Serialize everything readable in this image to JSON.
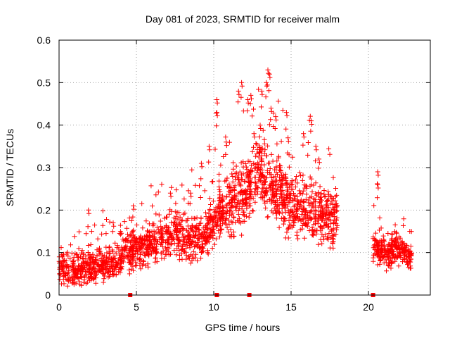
{
  "chart_data": {
    "type": "scatter",
    "title": "Day 081 of 2023, SRMTID for receiver malm",
    "xlabel": "GPS time / hours",
    "ylabel": "SRMTID / TECUs",
    "xlim": [
      0,
      24
    ],
    "ylim": [
      0,
      0.6
    ],
    "xticks": [
      0,
      5,
      10,
      15,
      20
    ],
    "xtick_labels": [
      "0",
      "5",
      "10",
      "15",
      "20"
    ],
    "yticks": [
      0,
      0.1,
      0.2,
      0.3,
      0.4,
      0.5,
      0.6
    ],
    "ytick_labels": [
      "0",
      "0.1",
      "0.2",
      "0.3",
      "0.4",
      "0.5",
      "0.6"
    ],
    "grid": true,
    "marker_color": "#ff0000",
    "series": [
      {
        "name": "SRMTID",
        "marker": "plus",
        "color": "#ff0000",
        "segments": [
          {
            "x_start": 0.0,
            "x_end": 4.5,
            "profile": [
              [
                0.0,
                0.06
              ],
              [
                1.0,
                0.06
              ],
              [
                2.0,
                0.07
              ],
              [
                3.0,
                0.07
              ],
              [
                4.0,
                0.08
              ],
              [
                4.5,
                0.12
              ]
            ],
            "spread": 0.035,
            "density": 26
          },
          {
            "x_start": 4.5,
            "x_end": 10.0,
            "profile": [
              [
                4.5,
                0.1
              ],
              [
                5.5,
                0.11
              ],
              [
                6.5,
                0.13
              ],
              [
                7.5,
                0.15
              ],
              [
                8.5,
                0.13
              ],
              [
                9.5,
                0.14
              ],
              [
                10.0,
                0.17
              ]
            ],
            "spread": 0.045,
            "density": 28
          },
          {
            "x_start": 10.0,
            "x_end": 13.0,
            "profile": [
              [
                10.0,
                0.18
              ],
              [
                11.0,
                0.22
              ],
              [
                12.0,
                0.24
              ],
              [
                13.0,
                0.3
              ]
            ],
            "spread": 0.07,
            "density": 30
          },
          {
            "x_start": 13.0,
            "x_end": 18.0,
            "profile": [
              [
                13.0,
                0.28
              ],
              [
                14.0,
                0.25
              ],
              [
                15.0,
                0.21
              ],
              [
                16.0,
                0.2
              ],
              [
                17.0,
                0.19
              ],
              [
                18.0,
                0.17
              ]
            ],
            "spread": 0.07,
            "density": 30
          },
          {
            "x_start": 20.3,
            "x_end": 22.8,
            "profile": [
              [
                20.3,
                0.11
              ],
              [
                21.0,
                0.1
              ],
              [
                22.0,
                0.11
              ],
              [
                22.8,
                0.09
              ]
            ],
            "spread": 0.03,
            "density": 28
          }
        ],
        "peaks": [
          [
            10.2,
            0.46
          ],
          [
            10.2,
            0.43
          ],
          [
            10.8,
            0.36
          ],
          [
            11.6,
            0.48
          ],
          [
            11.8,
            0.5
          ],
          [
            12.2,
            0.46
          ],
          [
            12.4,
            0.47
          ],
          [
            12.6,
            0.38
          ],
          [
            13.0,
            0.4
          ],
          [
            13.1,
            0.48
          ],
          [
            13.4,
            0.5
          ],
          [
            13.5,
            0.53
          ],
          [
            13.6,
            0.52
          ],
          [
            13.7,
            0.44
          ],
          [
            14.0,
            0.42
          ],
          [
            14.3,
            0.3
          ],
          [
            14.7,
            0.43
          ],
          [
            14.8,
            0.37
          ],
          [
            15.8,
            0.38
          ],
          [
            16.3,
            0.41
          ],
          [
            16.6,
            0.35
          ],
          [
            9.7,
            0.35
          ],
          [
            9.2,
            0.31
          ],
          [
            8.5,
            0.24
          ],
          [
            7.2,
            0.24
          ],
          [
            1.9,
            0.2
          ],
          [
            4.8,
            0.21
          ],
          [
            20.6,
            0.29
          ],
          [
            20.6,
            0.26
          ],
          [
            17.3,
            0.22
          ],
          [
            3.5,
            0.17
          ],
          [
            16.8,
            0.32
          ]
        ]
      }
    ],
    "axis_markers": [
      {
        "x": 4.6,
        "y": 0
      },
      {
        "x": 10.2,
        "y": 0
      },
      {
        "x": 12.3,
        "y": 0
      },
      {
        "x": 20.3,
        "y": 0
      }
    ]
  }
}
